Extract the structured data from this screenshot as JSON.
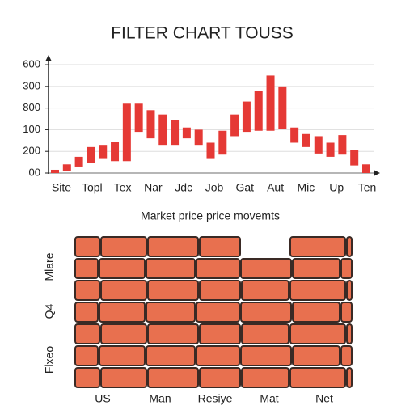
{
  "chart_data": {
    "type": "floating-bar",
    "title": "FILTER CHART TOUSS",
    "x_labels": [
      "Site",
      "Topl",
      "Tex",
      "Nar",
      "Jdc",
      "Job",
      "Gat",
      "Aut",
      "Mic",
      "Up",
      "Ten"
    ],
    "lows": [
      0.0,
      0.1,
      0.3,
      0.45,
      0.65,
      0.55,
      0.55,
      1.9,
      1.6,
      1.3,
      1.3,
      1.6,
      1.3,
      0.65,
      0.85,
      1.7,
      1.9,
      1.95,
      1.95,
      2.05,
      1.4,
      1.2,
      0.9,
      0.75,
      0.85,
      0.35,
      0.0
    ],
    "highs": [
      0.15,
      0.4,
      0.75,
      1.2,
      1.3,
      1.45,
      3.2,
      3.2,
      2.9,
      2.7,
      2.45,
      2.1,
      2.0,
      1.4,
      1.95,
      2.7,
      3.3,
      3.8,
      4.5,
      4.0,
      2.1,
      1.8,
      1.7,
      1.4,
      1.75,
      1.05,
      0.4
    ],
    "color": "#e53935",
    "ylim": [
      0,
      5.3
    ],
    "yticks": [
      {
        "value": 0,
        "label": "00"
      },
      {
        "value": 1,
        "label": "200"
      },
      {
        "value": 2,
        "label": "100"
      },
      {
        "value": 3,
        "label": "800"
      },
      {
        "value": 4,
        "label": "300"
      },
      {
        "value": 5,
        "label": "600"
      }
    ],
    "grid": true
  },
  "wall": {
    "caption": "Market price price movemts",
    "y_labels": [
      "Mlare",
      "Q4",
      "Flxeo"
    ],
    "x_labels": [
      "US",
      "Man",
      "Resiye",
      "Mat",
      "Net"
    ]
  }
}
